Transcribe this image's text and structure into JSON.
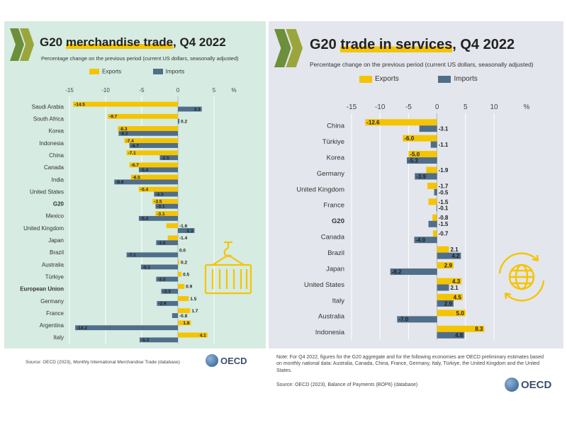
{
  "colors": {
    "exports": "#f5c400",
    "imports": "#4f6e8a",
    "panel_left": "#d6ebe2",
    "panel_right": "#e3e6ec",
    "highlight": "#f5c400",
    "icon": "#f5c400"
  },
  "left": {
    "title_pre": "G20 ",
    "title_highlight": "merchandise trade",
    "title_post": ", Q4 2022",
    "subtitle": "Percentage change on the previous period (current US dollars, seasonally adjusted)",
    "legend_exports": "Exports",
    "legend_imports": "Imports",
    "source": "Source: OECD (2023), Monthly International Merchandise Trade (database)",
    "oecd_label": "OECD",
    "icon": "container-icon"
  },
  "right": {
    "title_pre": "G20 ",
    "title_highlight": "trade in services",
    "title_post": ", Q4 2022",
    "subtitle": "Percentage change on the previous period (current US dollars, seasonally adjusted)",
    "legend_exports": "Exports",
    "legend_imports": "Imports",
    "note": "Note: For Q4 2022, figures for the G20 aggregate and for the following economies are OECD preliminary estimates based on monthly national data:  Australia, Canada, China, France, Germany, Italy, Türkiye, the United Kingdom and the United States.",
    "source": "Source: OECD (2023), Balance of Payments (BOP6) (database)",
    "oecd_label": "OECD",
    "icon": "globe-exchange-icon"
  },
  "chart_data": [
    {
      "type": "bar",
      "orientation": "horizontal",
      "title": "G20 merchandise trade, Q4 2022",
      "xlabel": "%",
      "xlim": [
        -15,
        5
      ],
      "ticks": [
        -15,
        -10,
        -5,
        0,
        5
      ],
      "grid": true,
      "legend": "top",
      "bold_categories": [
        "G20",
        "European Union"
      ],
      "categories": [
        "Saudi Arabia",
        "South Africa",
        "Korea",
        "Indonesia",
        "China",
        "Canada",
        "India",
        "United States",
        "G20",
        "Mexico",
        "United Kingdom",
        "Japan",
        "Brazil",
        "Australia",
        "Türkiye",
        "European Union",
        "Germany",
        "France",
        "Argentina",
        "Italy"
      ],
      "series": [
        {
          "name": "Exports",
          "values": [
            -14.5,
            -9.7,
            -8.3,
            -7.4,
            -7.1,
            -6.7,
            -6.5,
            -5.4,
            -3.5,
            -3.1,
            -1.6,
            -1.4,
            0.0,
            0.2,
            0.5,
            0.9,
            1.5,
            1.7,
            1.8,
            4.1
          ],
          "labels": [
            "-14.5",
            "-9.7",
            "-8.3",
            "-7.4",
            "-7.1",
            "-6.7",
            "-6.5",
            "-5.4",
            "-3.5",
            "-3.1",
            "-1.6",
            "-1.4",
            "0.0",
            "0.2",
            "0.5",
            "0.9",
            "1.5",
            "1.7",
            "1.8",
            "4.1"
          ]
        },
        {
          "name": "Imports",
          "values": [
            3.3,
            0.2,
            -8.2,
            -6.7,
            -2.5,
            -5.4,
            -8.8,
            -3.3,
            -3.1,
            -5.4,
            2.3,
            -3.0,
            -7.1,
            -5.1,
            -3.0,
            -2.3,
            -2.9,
            -0.8,
            -14.2,
            -5.3
          ],
          "labels": [
            "3.3",
            "0.2",
            "-8.2",
            "-6.7",
            "-2.5",
            "-5.4",
            "-8.8",
            "-3.3",
            "-3.1",
            "-5.4",
            "2.3",
            "-3.0",
            "-7.1",
            "-5.1",
            "-3.0",
            "-2.3",
            "-2.9",
            "-0.8",
            "-14.2",
            "-5.3"
          ]
        }
      ]
    },
    {
      "type": "bar",
      "orientation": "horizontal",
      "title": "G20 trade in services, Q4 2022",
      "xlabel": "%",
      "xlim": [
        -15,
        10
      ],
      "ticks": [
        -15,
        -10,
        -5,
        0,
        5,
        10
      ],
      "grid": true,
      "legend": "top",
      "bold_categories": [
        "G20"
      ],
      "categories": [
        "China",
        "Türkiye",
        "Korea",
        "Germany",
        "United Kingdom",
        "France",
        "G20",
        "Canada",
        "Brazil",
        "Japan",
        "United States",
        "Italy",
        "Australia",
        "Indonesia"
      ],
      "series": [
        {
          "name": "Exports",
          "values": [
            -12.6,
            -6.0,
            -5.0,
            -1.9,
            -1.7,
            -1.5,
            -0.8,
            -0.7,
            2.1,
            2.9,
            4.3,
            4.5,
            5.0,
            8.3
          ],
          "labels": [
            "-12.6",
            "-6.0",
            "-5.0",
            "-1.9",
            "-1.7",
            "-1.5",
            "-0.8",
            "-0.7",
            "2.1",
            "2.9",
            "4.3",
            "4.5",
            "5.0",
            "8.3"
          ]
        },
        {
          "name": "Imports",
          "values": [
            -3.1,
            -1.1,
            -5.3,
            -3.9,
            -0.5,
            -0.1,
            -1.5,
            -4.0,
            4.2,
            -8.2,
            2.1,
            2.9,
            -7.0,
            4.8
          ],
          "labels": [
            "-3.1",
            "-1.1",
            "-5.3",
            "-3.9",
            "-0.5",
            "-0.1",
            "-1.5",
            "-4.0",
            "4.2",
            "-8.2",
            "2.1",
            "2.9",
            "-7.0",
            "4.8"
          ]
        }
      ]
    }
  ]
}
